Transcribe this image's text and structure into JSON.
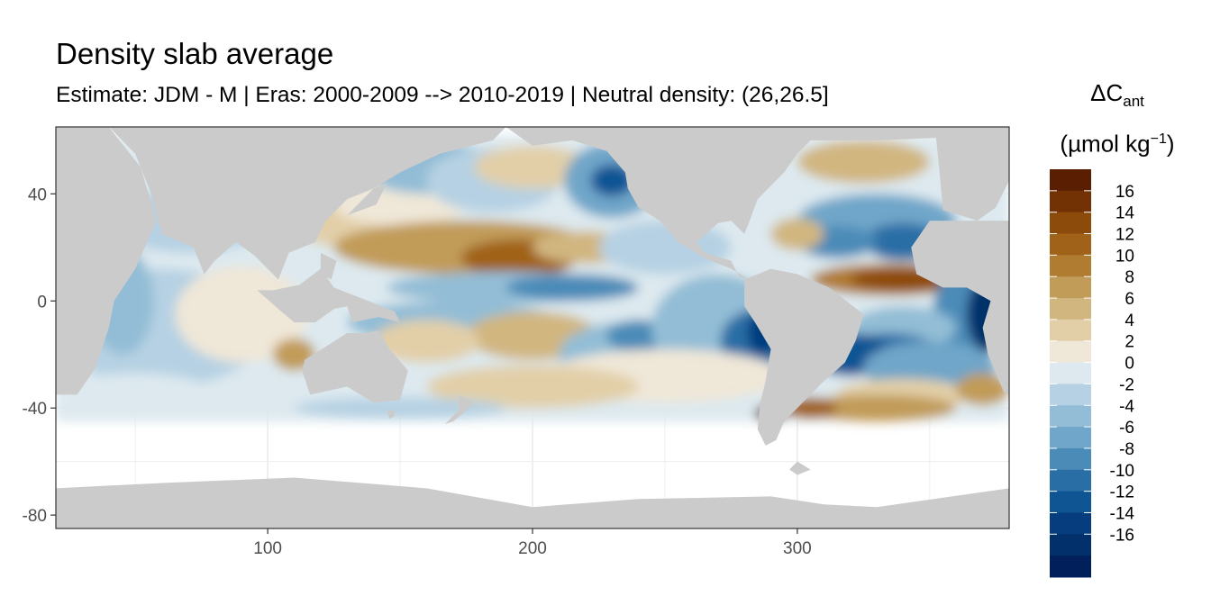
{
  "chart_data": {
    "type": "heatmap",
    "title": "Density slab average",
    "subtitle": "Estimate: JDM - M | Eras: 2000-2009 --> 2010-2019 | Neutral density: (26,26.5]",
    "xlabel": "",
    "ylabel": "",
    "xlim": [
      20,
      380
    ],
    "ylim": [
      -85,
      65
    ],
    "x_ticks": [
      "100",
      "200",
      "300"
    ],
    "y_ticks": [
      "40",
      "0",
      "-40",
      "-80"
    ],
    "legend": {
      "title_main": "ΔC",
      "title_sub": "ant",
      "unit_open": "(µmol kg",
      "unit_sup": "−1",
      "unit_close": ")",
      "placement": "right",
      "breaks": [
        18,
        16,
        14,
        12,
        10,
        8,
        6,
        4,
        2,
        0,
        -2,
        -4,
        -6,
        -8,
        -10,
        -12,
        -14,
        -16,
        -18
      ],
      "labels": [
        "16",
        "14",
        "12",
        "10",
        "8",
        "6",
        "4",
        "2",
        "0",
        "-2",
        "-4",
        "-6",
        "-8",
        "-10",
        "-12",
        "-14",
        "-16"
      ],
      "colors": [
        "#5a1e02",
        "#733203",
        "#8c4a0b",
        "#a06218",
        "#b07c31",
        "#c19b58",
        "#d1b680",
        "#e2cfa8",
        "#efe7d8",
        "#dde9ef",
        "#b6d1e3",
        "#93bdd6",
        "#6fa6c9",
        "#4b8bb8",
        "#2a6ea6",
        "#0f5594",
        "#053d7f",
        "#02306a",
        "#011f5b"
      ]
    },
    "colors": {
      "land": "#cbcbcb",
      "panel_border": "#333333",
      "grid": "#ebebeb"
    }
  }
}
